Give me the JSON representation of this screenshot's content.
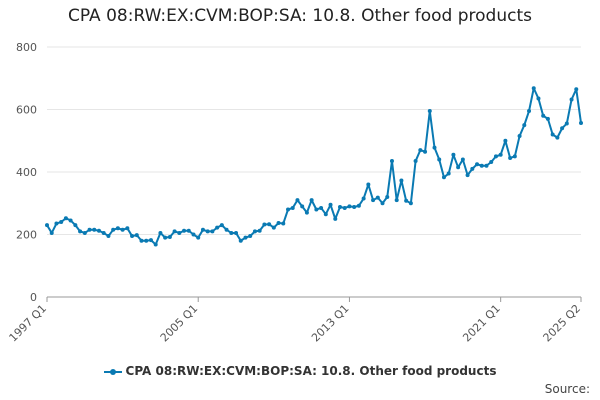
{
  "title": "CPA 08:RW:EX:CVM:BOP:SA: 10.8. Other food products",
  "source_label": "Source:",
  "colors": {
    "series": "#0a7ab3",
    "grid": "#e6e6e6",
    "axis": "#999999"
  },
  "chart_data": {
    "type": "line",
    "title": "CPA 08:RW:EX:CVM:BOP:SA: 10.8. Other food products",
    "xlabel": "",
    "ylabel": "",
    "ylim": [
      0,
      800
    ],
    "yticks": [
      0,
      200,
      400,
      600,
      800
    ],
    "xticks": [
      "1997 Q1",
      "2005 Q1",
      "2013 Q1",
      "2021 Q1",
      "2025 Q2"
    ],
    "x_start": "1997 Q1",
    "x_end": "2025 Q2",
    "frequency": "quarterly",
    "grid": true,
    "legend_position": "bottom",
    "series": [
      {
        "name": "CPA 08:RW:EX:CVM:BOP:SA: 10.8. Other food products",
        "values": [
          230,
          205,
          235,
          240,
          252,
          245,
          230,
          210,
          205,
          215,
          215,
          212,
          205,
          195,
          215,
          220,
          215,
          220,
          195,
          198,
          180,
          180,
          182,
          168,
          205,
          190,
          192,
          210,
          205,
          212,
          212,
          200,
          190,
          215,
          210,
          210,
          222,
          230,
          215,
          205,
          205,
          180,
          190,
          195,
          210,
          212,
          232,
          233,
          222,
          237,
          235,
          280,
          285,
          310,
          290,
          270,
          310,
          280,
          285,
          265,
          295,
          250,
          288,
          285,
          290,
          288,
          292,
          315,
          360,
          310,
          318,
          300,
          320,
          435,
          310,
          373,
          308,
          300,
          435,
          470,
          465,
          595,
          478,
          440,
          383,
          395,
          455,
          415,
          440,
          390,
          410,
          425,
          420,
          420,
          432,
          450,
          455,
          500,
          445,
          450,
          515,
          550,
          595,
          668,
          635,
          580,
          570,
          520,
          510,
          540,
          555,
          632,
          665,
          557
        ]
      }
    ]
  }
}
